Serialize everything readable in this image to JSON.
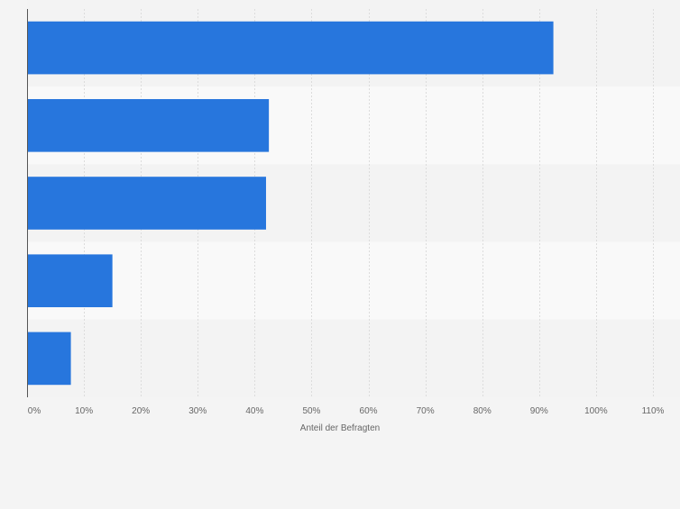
{
  "chart_data": {
    "type": "bar",
    "orientation": "horizontal",
    "categories": [
      "",
      "",
      "",
      "",
      ""
    ],
    "values": [
      92.5,
      42.5,
      42,
      15,
      7.7
    ],
    "xlabel": "Anteil der Befragten",
    "ylabel": "",
    "xlim": [
      0,
      110
    ],
    "x_ticks": [
      "0%",
      "10%",
      "20%",
      "30%",
      "40%",
      "50%",
      "60%",
      "70%",
      "80%",
      "90%",
      "100%",
      "110%"
    ],
    "grid": true,
    "legend": "none",
    "bar_color": "#2776dd",
    "band_colors": [
      "#f3f3f3",
      "#f9f9f9"
    ],
    "gridline_color": "#dcdcdc",
    "axis_color": "#555555",
    "tick_label_color": "#666666"
  }
}
